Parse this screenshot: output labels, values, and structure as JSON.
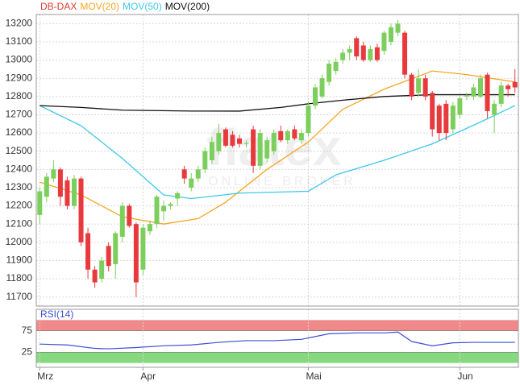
{
  "chart_data": [
    {
      "type": "candlestick",
      "categories": [
        "Mrz",
        null,
        null,
        null,
        null,
        null,
        null,
        null,
        null,
        null,
        null,
        null,
        null,
        null,
        null,
        "Apr",
        null,
        null,
        null,
        null,
        null,
        null,
        null,
        null,
        null,
        null,
        null,
        null,
        null,
        null,
        null,
        null,
        null,
        null,
        null,
        null,
        null,
        null,
        null,
        "Mai",
        null,
        null,
        null,
        null,
        null,
        null,
        null,
        null,
        null,
        null,
        null,
        null,
        null,
        null,
        null,
        null,
        null,
        null,
        null,
        null,
        null,
        "Jun",
        null,
        null,
        null,
        null,
        null,
        null,
        null,
        null
      ],
      "series": [
        {
          "name": "DB-DAX",
          "color": "#e03c31",
          "up_color": "#7ccf5c",
          "down_color": "#e8393d",
          "open": [
            12150,
            12250,
            12350,
            12400,
            12340,
            12200,
            12350,
            12050,
            11850,
            11800,
            11980,
            11880,
            12030,
            12200,
            12100,
            11850,
            12060,
            12100,
            12170,
            12200,
            12240,
            12400,
            12300,
            12350,
            12400,
            12450,
            12500,
            12620,
            12590,
            12570,
            12540,
            12620,
            12420,
            12460,
            12500,
            12610,
            12560,
            12620,
            12560,
            12600,
            12750,
            12800,
            12880,
            12940,
            13000,
            13040,
            13120,
            13080,
            13000,
            13070,
            13050,
            13100,
            13150,
            13150,
            12920,
            12820,
            12900,
            12820,
            12750,
            12760,
            12620,
            12700,
            12800,
            12800,
            12800,
            12920,
            12700,
            12760,
            12860,
            12880
          ],
          "high": [
            12300,
            12380,
            12450,
            12410,
            12360,
            12370,
            12360,
            12080,
            11870,
            11920,
            12000,
            12060,
            12220,
            12210,
            12110,
            12100,
            12120,
            12260,
            12230,
            12220,
            12280,
            12420,
            12380,
            12420,
            12520,
            12580,
            12650,
            12630,
            12610,
            12590,
            12560,
            12640,
            12620,
            12580,
            12620,
            12640,
            12620,
            12640,
            12620,
            12770,
            12870,
            12920,
            13000,
            13010,
            13060,
            13080,
            13130,
            13100,
            13080,
            13090,
            13160,
            13200,
            13220,
            13160,
            12930,
            12950,
            12920,
            12830,
            12760,
            12780,
            12770,
            12800,
            12820,
            12870,
            12920,
            12930,
            12780,
            12880,
            12870,
            12950
          ],
          "low": [
            12100,
            12220,
            12330,
            12200,
            12180,
            12180,
            11980,
            11800,
            11750,
            11780,
            11840,
            11800,
            12000,
            12080,
            11700,
            11820,
            12040,
            12080,
            12120,
            12180,
            12200,
            12320,
            12280,
            12330,
            12380,
            12430,
            12480,
            12520,
            12520,
            12520,
            12520,
            12380,
            12400,
            12440,
            12480,
            12550,
            12540,
            12560,
            12540,
            12580,
            12730,
            12790,
            12860,
            12920,
            12980,
            13000,
            13000,
            12990,
            12990,
            12990,
            13030,
            13080,
            13130,
            12900,
            12780,
            12800,
            12780,
            12580,
            12560,
            12560,
            12600,
            12680,
            12780,
            12780,
            12790,
            12680,
            12600,
            12740,
            12800,
            12820
          ],
          "close": [
            12280,
            12360,
            12400,
            12250,
            12200,
            12350,
            12000,
            11850,
            11780,
            11900,
            11870,
            12050,
            12200,
            12090,
            11780,
            12080,
            12100,
            12250,
            12200,
            12210,
            12270,
            12350,
            12350,
            12400,
            12500,
            12550,
            12600,
            12530,
            12530,
            12540,
            12545,
            12420,
            12600,
            12560,
            12600,
            12560,
            12610,
            12570,
            12600,
            12750,
            12850,
            12900,
            12980,
            12990,
            13040,
            13060,
            13020,
            13000,
            13060,
            13000,
            13150,
            13180,
            13200,
            12920,
            12800,
            12900,
            12800,
            12620,
            12600,
            12600,
            12750,
            12790,
            12805,
            12850,
            12900,
            12720,
            12760,
            12860,
            12840,
            12850
          ]
        }
      ],
      "lines": [
        {
          "name": "MOV(20)",
          "color": "#f5a623",
          "x": [
            0,
            6,
            12,
            18,
            23,
            27,
            33,
            39,
            44,
            50,
            57,
            62,
            69
          ],
          "values": [
            12330,
            12260,
            12140,
            12100,
            12130,
            12220,
            12400,
            12550,
            12730,
            12840,
            12940,
            12920,
            12880
          ]
        },
        {
          "name": "MOV(50)",
          "color": "#3cc8e8",
          "x": [
            0,
            6,
            12,
            18,
            22,
            29,
            39,
            43,
            50,
            57,
            64,
            69
          ],
          "values": [
            12750,
            12640,
            12460,
            12260,
            12240,
            12270,
            12280,
            12370,
            12450,
            12540,
            12660,
            12750
          ]
        },
        {
          "name": "MOV(200)",
          "color": "#111111",
          "x": [
            0,
            6,
            12,
            22,
            29,
            35,
            39,
            44,
            50,
            57,
            64,
            69
          ],
          "values": [
            12750,
            12740,
            12725,
            12720,
            12720,
            12740,
            12760,
            12780,
            12800,
            12810,
            12810,
            12810
          ]
        }
      ],
      "ylim": [
        11650,
        13250
      ],
      "yticks": [
        11700,
        11800,
        11900,
        12000,
        12100,
        12200,
        12300,
        12400,
        12500,
        12600,
        12700,
        12800,
        12900,
        13000,
        13100,
        13200
      ],
      "grid": true,
      "watermark": [
        "flatex",
        "ONLINE BROKER"
      ]
    },
    {
      "type": "line",
      "series": [
        {
          "name": "RSI(14)",
          "color": "#3a4fd0",
          "x": [
            0,
            4,
            8,
            10,
            14,
            18,
            22,
            26,
            30,
            34,
            38,
            42,
            46,
            50,
            52,
            54,
            57,
            60,
            63,
            66,
            69
          ],
          "values": [
            44,
            42,
            34,
            33,
            36,
            40,
            42,
            48,
            52,
            52,
            55,
            68,
            70,
            70,
            72,
            50,
            40,
            47,
            48,
            48,
            48
          ]
        }
      ],
      "xlim": [
        -0.5,
        69.5
      ],
      "ylim": [
        -10,
        125
      ],
      "yticks": [
        25,
        75
      ],
      "bands": [
        {
          "from": 75,
          "to": 100,
          "color": "#f08a8a"
        },
        {
          "from": 0,
          "to": 25,
          "color": "#86d97e"
        }
      ]
    }
  ]
}
